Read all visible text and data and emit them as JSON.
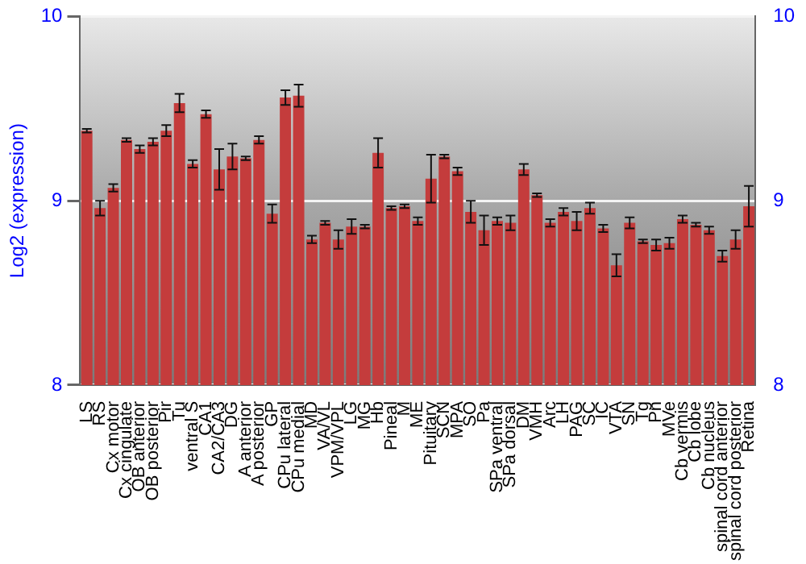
{
  "chart_data": {
    "type": "bar",
    "ylabel": "Log2 (expression)",
    "categories": [
      "LS",
      "RS",
      "Cx motor",
      "Cx cingulate",
      "OB anterior",
      "OB posterior",
      "Pir",
      "Tu",
      "ventral S",
      "CA1",
      "CA2/CA3",
      "DG",
      "A anterior",
      "A posterior",
      "GP",
      "CPu lateral",
      "CPu medial",
      "MD",
      "VA/VL",
      "VPM/VPL",
      "LG",
      "MG",
      "Hb",
      "Pineal",
      "M",
      "ME",
      "Pituitary",
      "SCN",
      "MPA",
      "SO",
      "Pa",
      "SPa ventral",
      "SPa dorsal",
      "DM",
      "VMH",
      "Arc",
      "LH",
      "PAG",
      "SC",
      "IC",
      "VTA",
      "SN",
      "Tg",
      "Pn",
      "MVe",
      "Cb vermis",
      "Cb lobe",
      "Cb nucleus",
      "spinal cord anterior",
      "spinal cord posterior",
      "Retina"
    ],
    "values": [
      9.38,
      8.96,
      9.07,
      9.33,
      9.28,
      9.32,
      9.38,
      9.53,
      9.2,
      9.47,
      9.17,
      9.24,
      9.23,
      9.33,
      8.93,
      9.56,
      9.57,
      8.79,
      8.88,
      8.79,
      8.86,
      8.86,
      9.26,
      8.96,
      8.97,
      8.89,
      9.12,
      9.24,
      9.16,
      8.94,
      8.84,
      8.89,
      8.88,
      9.17,
      9.03,
      8.88,
      8.94,
      8.89,
      8.96,
      8.85,
      8.65,
      8.88,
      8.78,
      8.76,
      8.77,
      8.9,
      8.87,
      8.84,
      8.7,
      8.79,
      8.97
    ],
    "errors": [
      0.01,
      0.04,
      0.02,
      0.01,
      0.02,
      0.02,
      0.03,
      0.05,
      0.02,
      0.02,
      0.11,
      0.07,
      0.01,
      0.02,
      0.05,
      0.04,
      0.06,
      0.02,
      0.01,
      0.05,
      0.04,
      0.01,
      0.08,
      0.01,
      0.01,
      0.02,
      0.13,
      0.01,
      0.02,
      0.06,
      0.08,
      0.02,
      0.04,
      0.03,
      0.01,
      0.02,
      0.02,
      0.05,
      0.03,
      0.02,
      0.06,
      0.03,
      0.01,
      0.03,
      0.03,
      0.02,
      0.01,
      0.02,
      0.03,
      0.05,
      0.11
    ],
    "color": "#c43c3c",
    "ylim": [
      8,
      10
    ],
    "yticks": [
      8,
      9,
      10
    ],
    "y2lim": [
      8,
      10
    ],
    "y2ticks": [
      8,
      9,
      10
    ],
    "grid": "y",
    "legend": false
  }
}
